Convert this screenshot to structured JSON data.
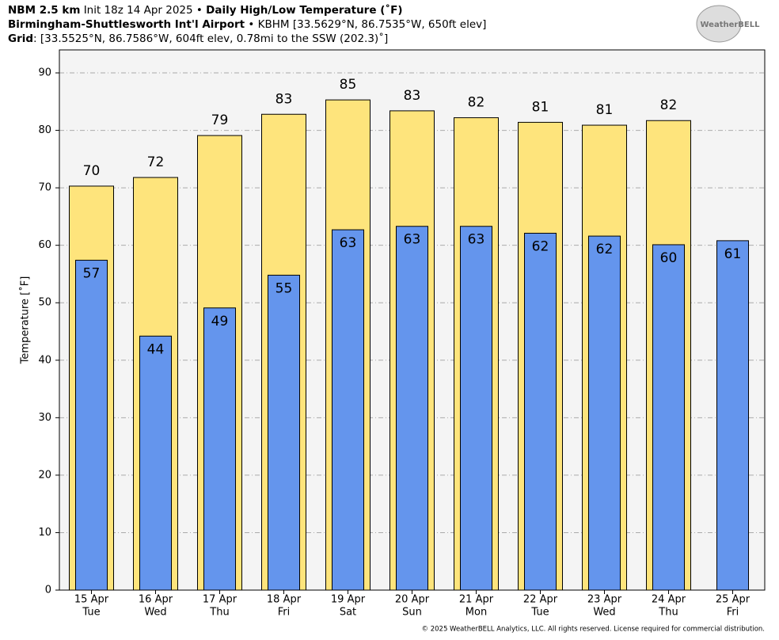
{
  "header": {
    "line1": [
      "NBM 2.5 km",
      "Init 18z 14 Apr 2025 •",
      "Daily High/Low Temperature (˚F)"
    ],
    "line2": [
      "Birmingham-Shuttlesworth Int'l Airport",
      "• KBHM [33.5629°N, 86.7535°W, 650ft elev]"
    ],
    "line3": [
      "Grid",
      ": [33.5525°N, 86.7586°W, 604ft elev, 0.78mi to the SSW (202.3)˚]"
    ],
    "logo": "WeatherBELL"
  },
  "chart_data": {
    "type": "bar",
    "ylabel": "Temperature [˚F]",
    "categories": [
      "15 Apr",
      "16 Apr",
      "17 Apr",
      "18 Apr",
      "19 Apr",
      "20 Apr",
      "21 Apr",
      "22 Apr",
      "23 Apr",
      "24 Apr",
      "25 Apr"
    ],
    "weekdays": [
      "Tue",
      "Wed",
      "Thu",
      "Fri",
      "Sat",
      "Sun",
      "Mon",
      "Tue",
      "Wed",
      "Thu",
      "Fri"
    ],
    "series": [
      {
        "name": "High",
        "color": "#fee47c",
        "values": [
          70.3,
          71.8,
          79.1,
          82.8,
          85.3,
          83.4,
          82.2,
          81.4,
          80.9,
          81.7,
          null
        ],
        "value_labels": [
          "70",
          "72",
          "79",
          "83",
          "85",
          "83",
          "82",
          "81",
          "81",
          "82",
          null
        ]
      },
      {
        "name": "Low",
        "color": "#6495ed",
        "values": [
          57.4,
          44.2,
          49.1,
          54.8,
          62.7,
          63.3,
          63.3,
          62.1,
          61.6,
          60.1,
          60.8
        ],
        "value_labels": [
          "57",
          "44",
          "49",
          "55",
          "63",
          "63",
          "63",
          "62",
          "62",
          "60",
          "61"
        ]
      }
    ],
    "ylim": [
      0,
      94
    ],
    "yticks": [
      0,
      10,
      20,
      30,
      40,
      50,
      60,
      70,
      80,
      90
    ],
    "grid": true
  },
  "footer": "© 2025 WeatherBELL Analytics, LLC. All rights reserved. License required for commercial distribution."
}
